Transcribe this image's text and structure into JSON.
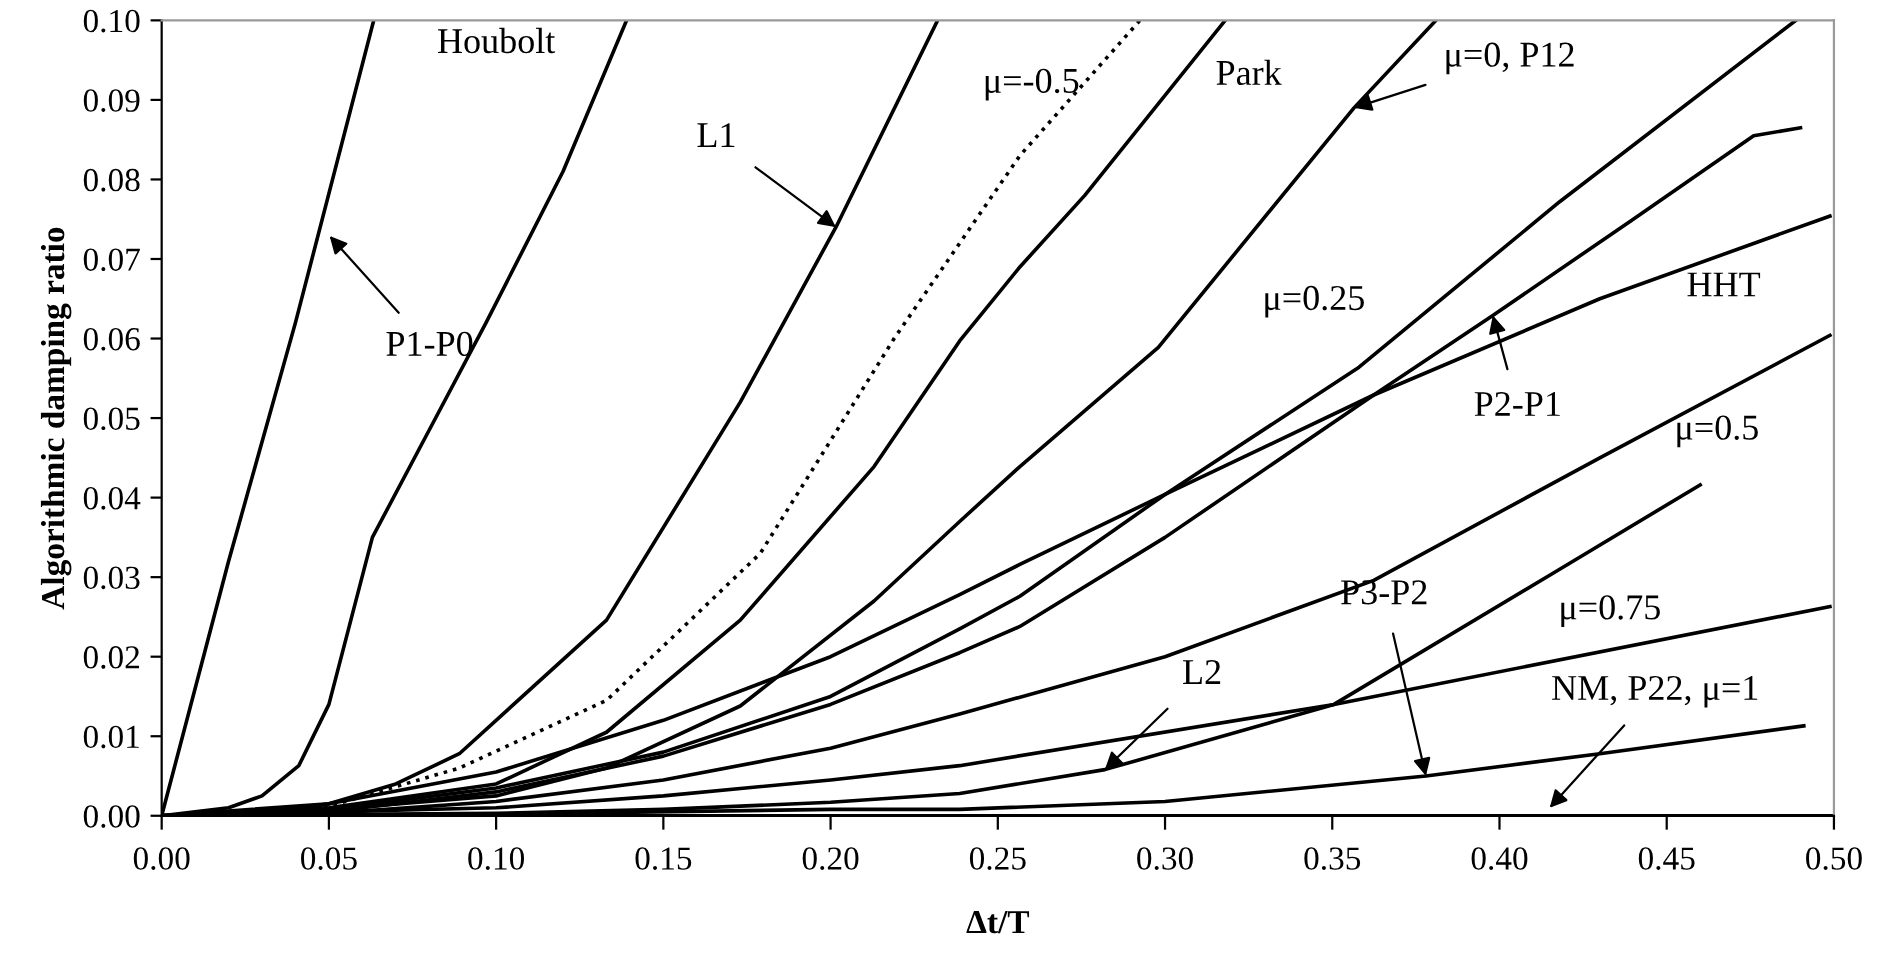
{
  "chart_data": {
    "type": "line",
    "xlabel": "Δt/T",
    "ylabel": "Algorithmic damping ratio",
    "xlim": [
      0,
      0.5
    ],
    "ylim": [
      0,
      0.1
    ],
    "xticks": [
      {
        "value": 0,
        "label": "0.00"
      },
      {
        "value": 0.05,
        "label": "0.05"
      },
      {
        "value": 0.1,
        "label": "0.10"
      },
      {
        "value": 0.15,
        "label": "0.15"
      },
      {
        "value": 0.2,
        "label": "0.20"
      },
      {
        "value": 0.25,
        "label": "0.25"
      },
      {
        "value": 0.3,
        "label": "0.30"
      },
      {
        "value": 0.35,
        "label": "0.35"
      },
      {
        "value": 0.4,
        "label": "0.40"
      },
      {
        "value": 0.45,
        "label": "0.45"
      },
      {
        "value": 0.5,
        "label": "0.50"
      }
    ],
    "yticks": [
      {
        "value": 0,
        "label": "0.00"
      },
      {
        "value": 0.01,
        "label": "0.01"
      },
      {
        "value": 0.02,
        "label": "0.02"
      },
      {
        "value": 0.03,
        "label": "0.03"
      },
      {
        "value": 0.04,
        "label": "0.04"
      },
      {
        "value": 0.05,
        "label": "0.05"
      },
      {
        "value": 0.06,
        "label": "0.06"
      },
      {
        "value": 0.07,
        "label": "0.07"
      },
      {
        "value": 0.08,
        "label": "0.08"
      },
      {
        "value": 0.09,
        "label": "0.09"
      },
      {
        "value": 0.1,
        "label": "0.10"
      }
    ],
    "grid": false,
    "marker": "none",
    "series": [
      {
        "color": "#000000",
        "line_style": "solid",
        "x": [
          0,
          0.02,
          0.04,
          0.0634
        ],
        "values": [
          0,
          0.032,
          0.062,
          0.1
        ]
      },
      {
        "color": "#000000",
        "line_style": "solid",
        "x": [
          0,
          0.02,
          0.03,
          0.041,
          0.05,
          0.063,
          0.08,
          0.097,
          0.12,
          0.139
        ],
        "values": [
          0,
          0.001,
          0.0025,
          0.0063,
          0.014,
          0.035,
          0.0485,
          0.062,
          0.081,
          0.1
        ]
      },
      {
        "color": "#000000",
        "line_style": "solid",
        "x": [
          0,
          0.03,
          0.05,
          0.07,
          0.089,
          0.133,
          0.173,
          0.2016,
          0.232
        ],
        "values": [
          0,
          0.0003,
          0.0015,
          0.004,
          0.0078,
          0.0246,
          0.052,
          0.074,
          0.1
        ]
      },
      {
        "color": "#000000",
        "line_style": "dotted",
        "x": [
          0,
          0.05,
          0.089,
          0.133,
          0.179,
          0.219,
          0.2566,
          0.2925
        ],
        "values": [
          0,
          0.0012,
          0.006,
          0.0145,
          0.033,
          0.06,
          0.083,
          0.1
        ]
      },
      {
        "color": "#000000",
        "line_style": "solid",
        "x": [
          0,
          0.05,
          0.1,
          0.133,
          0.173,
          0.213,
          0.2386,
          0.2566,
          0.276,
          0.318
        ],
        "values": [
          0,
          0.001,
          0.004,
          0.0105,
          0.0246,
          0.0439,
          0.0597,
          0.069,
          0.078,
          0.1
        ]
      },
      {
        "color": "#000000",
        "line_style": "solid",
        "x": [
          0,
          0.05,
          0.1,
          0.133,
          0.173,
          0.213,
          0.2386,
          0.2566,
          0.298,
          0.3565,
          0.381
        ],
        "values": [
          0,
          0.0008,
          0.0025,
          0.006,
          0.0138,
          0.027,
          0.037,
          0.0439,
          0.0589,
          0.089,
          0.1
        ]
      },
      {
        "color": "#000000",
        "line_style": "solid",
        "x": [
          0,
          0.05,
          0.1,
          0.15,
          0.2,
          0.2386,
          0.2566,
          0.3,
          0.358,
          0.418,
          0.4886
        ],
        "values": [
          0,
          0.0008,
          0.0035,
          0.008,
          0.015,
          0.0235,
          0.0276,
          0.0404,
          0.0564,
          0.0772,
          0.1
        ]
      },
      {
        "color": "#000000",
        "line_style": "solid",
        "x": [
          0,
          0.05,
          0.1,
          0.15,
          0.2,
          0.2386,
          0.2566,
          0.3,
          0.3624,
          0.43,
          0.4988
        ],
        "values": [
          0,
          0.0015,
          0.0055,
          0.012,
          0.02,
          0.0278,
          0.0316,
          0.0404,
          0.0529,
          0.065,
          0.0754
        ]
      },
      {
        "color": "#000000",
        "line_style": "solid",
        "x": [
          0,
          0.05,
          0.1,
          0.15,
          0.2,
          0.2386,
          0.2566,
          0.3,
          0.3624,
          0.398,
          0.44,
          0.476,
          0.49
        ],
        "values": [
          0,
          0.0005,
          0.003,
          0.0075,
          0.014,
          0.0205,
          0.0238,
          0.035,
          0.0529,
          0.0629,
          0.075,
          0.0855,
          0.0865
        ]
      },
      {
        "color": "#000000",
        "line_style": "solid",
        "x": [
          0,
          0.05,
          0.1,
          0.15,
          0.2,
          0.2386,
          0.3,
          0.3624,
          0.43,
          0.4988
        ],
        "values": [
          0,
          0.0003,
          0.0018,
          0.0045,
          0.0085,
          0.0128,
          0.02,
          0.0296,
          0.045,
          0.0604
        ]
      },
      {
        "color": "#000000",
        "line_style": "solid",
        "x": [
          0,
          0.1,
          0.15,
          0.2,
          0.2386,
          0.3505,
          0.4988
        ],
        "values": [
          0,
          0.001,
          0.0025,
          0.0045,
          0.0063,
          0.014,
          0.0263
        ]
      },
      {
        "color": "#000000",
        "line_style": "solid",
        "x": [
          0,
          0.1,
          0.15,
          0.2,
          0.2386,
          0.282,
          0.3505,
          0.418,
          0.46
        ],
        "values": [
          0,
          0.0003,
          0.0008,
          0.0017,
          0.0028,
          0.0058,
          0.014,
          0.031,
          0.0416
        ]
      },
      {
        "color": "#000000",
        "line_style": "solid",
        "x": [
          0,
          0.1,
          0.2,
          0.2386,
          0.3,
          0.378,
          0.43,
          0.491
        ],
        "values": [
          0,
          0.0002,
          0.0008,
          0.0008,
          0.0018,
          0.005,
          0.0078,
          0.0113
        ]
      },
      {
        "color": "#000000",
        "line_style": "solid",
        "x": [
          0,
          0.5
        ],
        "values": [
          0,
          0
        ]
      }
    ],
    "annotations": [
      "Houbolt",
      {
        "text": "L1",
        "x": 0.2016,
        "y": 0.074
      },
      {
        "text": "P1-P0",
        "x": 0.0502,
        "y": 0.0729
      },
      "μ=-0.5",
      "Park",
      {
        "text": "μ=0, P12",
        "x": 0.3565,
        "y": 0.089
      },
      "μ=0.25",
      "HHT",
      {
        "text": "P2-P1",
        "x": 0.398,
        "y": 0.0629
      },
      "μ=0.5",
      {
        "text": "P3-P2",
        "x": 0.378,
        "y": 0.005
      },
      "μ=0.75",
      {
        "text": "L2",
        "x": 0.282,
        "y": 0.0058
      },
      {
        "text": "NM, P22, μ=1",
        "x": 0.415,
        "y": 0.001
      }
    ]
  }
}
